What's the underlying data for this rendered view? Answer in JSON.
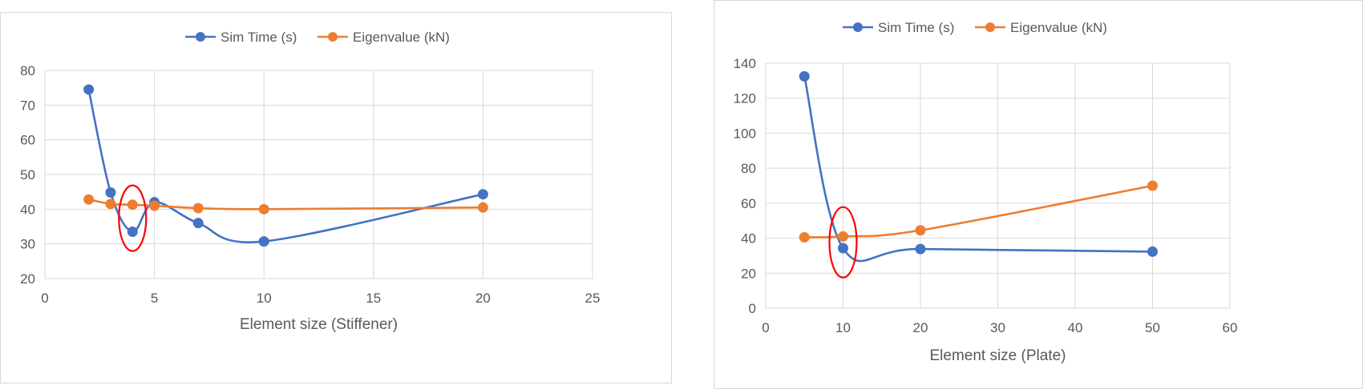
{
  "chart_data": [
    {
      "type": "line",
      "smooth": true,
      "title": "",
      "xlabel": "Element size (Stiffener)",
      "ylabel": "",
      "xlim": [
        0,
        25
      ],
      "ylim": [
        20,
        80
      ],
      "x_ticks": [
        "0",
        "5",
        "10",
        "15",
        "20",
        "25"
      ],
      "y_ticks": [
        "20",
        "30",
        "40",
        "50",
        "60",
        "70",
        "80"
      ],
      "grid": true,
      "legend_position": "top",
      "x": [
        2,
        3,
        4,
        5,
        7,
        10,
        20
      ],
      "series": [
        {
          "name": "Sim Time (s)",
          "color": "#4472c4",
          "values": [
            74.5,
            44.8,
            33.5,
            42.0,
            36.0,
            30.7,
            44.3
          ]
        },
        {
          "name": "Eigenvalue (kN)",
          "color": "#ed7d31",
          "values": [
            42.8,
            41.5,
            41.3,
            41.0,
            40.3,
            40.0,
            40.5
          ]
        }
      ],
      "annotations": [
        {
          "type": "ellipse",
          "color": "#ff0000",
          "x": 4
        }
      ]
    },
    {
      "type": "line",
      "smooth": true,
      "title": "",
      "xlabel": "Element size (Plate)",
      "ylabel": "",
      "xlim": [
        0,
        60
      ],
      "ylim": [
        0,
        140
      ],
      "x_ticks": [
        "0",
        "10",
        "20",
        "30",
        "40",
        "50",
        "60"
      ],
      "y_ticks": [
        "0",
        "20",
        "40",
        "60",
        "80",
        "100",
        "120",
        "140"
      ],
      "grid": true,
      "legend_position": "top",
      "x": [
        5,
        10,
        20,
        50
      ],
      "series": [
        {
          "name": "Sim Time (s)",
          "color": "#4472c4",
          "values": [
            132.5,
            34.3,
            33.8,
            32.3
          ]
        },
        {
          "name": "Eigenvalue (kN)",
          "color": "#ed7d31",
          "values": [
            40.5,
            41.0,
            44.5,
            70.0
          ]
        }
      ],
      "annotations": [
        {
          "type": "ellipse",
          "color": "#ff0000",
          "x": 10
        }
      ]
    }
  ]
}
